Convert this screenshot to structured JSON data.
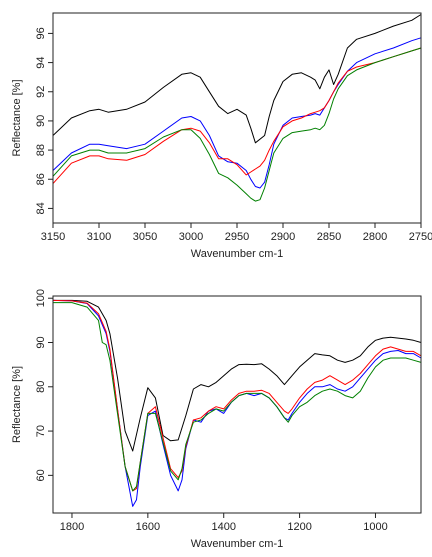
{
  "chart_data": [
    {
      "type": "line",
      "xlabel": "Wavenumber cm-1",
      "ylabel": "Reflectance [%]",
      "xlim": [
        3150,
        2750
      ],
      "ylim": [
        83,
        97.4
      ],
      "xticks": [
        3150,
        3100,
        3050,
        3000,
        2950,
        2900,
        2850,
        2800,
        2750
      ],
      "xtick_labels": [
        "3150",
        "3100",
        "3050",
        "3000",
        "2950",
        "2900",
        "2850",
        "2800",
        "2750"
      ],
      "yticks": [
        84,
        86,
        88,
        90,
        92,
        94,
        96
      ],
      "ytick_labels": [
        "84",
        "86",
        "88",
        "90",
        "92",
        "94",
        "96"
      ],
      "grid": false,
      "legend": "none",
      "series": [
        {
          "color": "#000000",
          "x": [
            3150,
            3130,
            3110,
            3100,
            3090,
            3070,
            3050,
            3030,
            3010,
            3000,
            2990,
            2980,
            2970,
            2960,
            2950,
            2940,
            2935,
            2930,
            2920,
            2915,
            2910,
            2900,
            2890,
            2880,
            2870,
            2865,
            2860,
            2855,
            2850,
            2845,
            2840,
            2830,
            2820,
            2800,
            2780,
            2760,
            2750
          ],
          "y": [
            89.0,
            90.2,
            90.7,
            90.8,
            90.6,
            90.8,
            91.3,
            92.3,
            93.2,
            93.3,
            93.0,
            92.0,
            91.0,
            90.5,
            90.8,
            90.4,
            89.5,
            88.5,
            89.0,
            90.3,
            91.4,
            92.7,
            93.2,
            93.3,
            93.0,
            92.8,
            92.2,
            93.0,
            93.5,
            92.5,
            93.2,
            95.0,
            95.6,
            96.0,
            96.5,
            96.9,
            97.3
          ]
        },
        {
          "color": "#0000ff",
          "x": [
            3150,
            3130,
            3110,
            3100,
            3090,
            3070,
            3050,
            3030,
            3010,
            3000,
            2990,
            2980,
            2970,
            2960,
            2950,
            2940,
            2935,
            2930,
            2925,
            2920,
            2915,
            2910,
            2900,
            2890,
            2880,
            2870,
            2865,
            2860,
            2855,
            2850,
            2845,
            2840,
            2830,
            2820,
            2800,
            2780,
            2760,
            2750
          ],
          "y": [
            86.6,
            87.8,
            88.4,
            88.4,
            88.3,
            88.1,
            88.4,
            89.3,
            90.2,
            90.3,
            90.0,
            89.0,
            87.6,
            87.2,
            87.1,
            86.6,
            86.0,
            85.5,
            85.4,
            85.8,
            87.0,
            88.4,
            89.7,
            90.2,
            90.3,
            90.4,
            90.5,
            90.4,
            90.9,
            91.4,
            92.0,
            92.5,
            93.4,
            94.0,
            94.6,
            95.0,
            95.5,
            95.7
          ]
        },
        {
          "color": "#ff0000",
          "x": [
            3150,
            3130,
            3110,
            3100,
            3090,
            3070,
            3050,
            3030,
            3010,
            3000,
            2990,
            2980,
            2970,
            2960,
            2950,
            2940,
            2935,
            2930,
            2925,
            2920,
            2915,
            2910,
            2900,
            2890,
            2880,
            2870,
            2865,
            2860,
            2855,
            2850,
            2845,
            2840,
            2830,
            2820,
            2800,
            2780,
            2760,
            2750
          ],
          "y": [
            85.7,
            87.1,
            87.6,
            87.6,
            87.4,
            87.3,
            87.7,
            88.6,
            89.4,
            89.5,
            89.3,
            88.5,
            87.4,
            87.4,
            87.0,
            86.3,
            86.5,
            86.7,
            86.9,
            87.3,
            88.0,
            88.6,
            89.6,
            90.0,
            90.2,
            90.5,
            90.6,
            90.7,
            90.9,
            91.4,
            92.0,
            92.6,
            93.4,
            93.7,
            94.0,
            94.4,
            94.8,
            95.0
          ]
        },
        {
          "color": "#008000",
          "x": [
            3150,
            3130,
            3110,
            3100,
            3090,
            3070,
            3050,
            3030,
            3010,
            3000,
            2990,
            2980,
            2970,
            2960,
            2950,
            2940,
            2935,
            2930,
            2925,
            2920,
            2915,
            2910,
            2900,
            2890,
            2880,
            2870,
            2865,
            2860,
            2855,
            2850,
            2845,
            2840,
            2830,
            2820,
            2800,
            2780,
            2760,
            2750
          ],
          "y": [
            86.2,
            87.6,
            88.0,
            88.0,
            87.8,
            87.8,
            88.1,
            88.9,
            89.4,
            89.4,
            88.8,
            87.7,
            86.4,
            86.1,
            85.6,
            85.0,
            84.7,
            84.5,
            84.6,
            85.4,
            86.6,
            87.8,
            88.8,
            89.2,
            89.3,
            89.4,
            89.5,
            89.4,
            89.7,
            90.5,
            91.5,
            92.2,
            93.1,
            93.5,
            94.0,
            94.4,
            94.8,
            95.0
          ]
        }
      ]
    },
    {
      "type": "line",
      "xlabel": "Wavenumber cm-1",
      "ylabel": "Reflectance [%]",
      "xlim": [
        1850,
        880
      ],
      "ylim": [
        51.5,
        100.5
      ],
      "xticks": [
        1800,
        1600,
        1400,
        1200,
        1000
      ],
      "xtick_labels": [
        "1800",
        "1600",
        "1400",
        "1200",
        "1000"
      ],
      "yticks": [
        60,
        70,
        80,
        90,
        100
      ],
      "ytick_labels": [
        "60",
        "70",
        "80",
        "90",
        "100"
      ],
      "grid": false,
      "legend": "none",
      "series": [
        {
          "color": "#000000",
          "x": [
            1850,
            1800,
            1760,
            1730,
            1710,
            1700,
            1680,
            1660,
            1640,
            1620,
            1600,
            1580,
            1560,
            1540,
            1520,
            1500,
            1480,
            1460,
            1440,
            1420,
            1400,
            1380,
            1360,
            1340,
            1320,
            1300,
            1280,
            1260,
            1240,
            1220,
            1200,
            1180,
            1160,
            1140,
            1120,
            1100,
            1080,
            1060,
            1040,
            1020,
            1000,
            980,
            960,
            940,
            920,
            900,
            880
          ],
          "y": [
            99.5,
            99.5,
            99.3,
            98.0,
            95.0,
            92.0,
            82.0,
            70.0,
            65.5,
            73.0,
            79.8,
            77.5,
            69.0,
            67.8,
            68.0,
            73.5,
            79.5,
            80.5,
            80.0,
            81.0,
            82.5,
            84.0,
            85.0,
            85.1,
            85.0,
            85.2,
            84.0,
            82.5,
            80.5,
            82.5,
            84.5,
            86.0,
            87.5,
            87.2,
            87.0,
            86.0,
            85.5,
            86.0,
            87.0,
            89.0,
            90.5,
            91.0,
            91.2,
            91.0,
            90.8,
            90.5,
            90.0
          ]
        },
        {
          "color": "#0000ff",
          "x": [
            1850,
            1800,
            1760,
            1730,
            1710,
            1700,
            1680,
            1660,
            1640,
            1630,
            1620,
            1600,
            1580,
            1560,
            1540,
            1520,
            1510,
            1500,
            1480,
            1460,
            1440,
            1420,
            1400,
            1380,
            1360,
            1340,
            1320,
            1300,
            1280,
            1260,
            1240,
            1230,
            1220,
            1200,
            1180,
            1160,
            1140,
            1120,
            1100,
            1080,
            1060,
            1040,
            1020,
            1000,
            980,
            960,
            940,
            920,
            900,
            880
          ],
          "y": [
            99.5,
            99.4,
            98.8,
            96.0,
            92.0,
            88.0,
            75.0,
            62.0,
            53.0,
            54.5,
            62.0,
            73.5,
            74.5,
            67.0,
            60.0,
            56.5,
            59.0,
            66.0,
            72.5,
            72.0,
            74.5,
            75.0,
            74.0,
            76.5,
            78.0,
            78.5,
            78.0,
            78.5,
            77.5,
            75.5,
            73.0,
            72.5,
            74.0,
            76.5,
            78.5,
            80.0,
            80.0,
            80.5,
            79.5,
            79.0,
            80.0,
            82.0,
            84.0,
            86.0,
            87.5,
            88.0,
            88.2,
            87.5,
            87.5,
            86.5
          ]
        },
        {
          "color": "#ff0000",
          "x": [
            1850,
            1800,
            1760,
            1730,
            1710,
            1700,
            1680,
            1660,
            1640,
            1630,
            1620,
            1600,
            1580,
            1560,
            1540,
            1520,
            1510,
            1500,
            1480,
            1460,
            1440,
            1420,
            1400,
            1380,
            1360,
            1340,
            1320,
            1300,
            1280,
            1260,
            1240,
            1230,
            1220,
            1200,
            1180,
            1160,
            1140,
            1120,
            1100,
            1080,
            1060,
            1040,
            1020,
            1000,
            980,
            960,
            940,
            920,
            900,
            880
          ],
          "y": [
            99.5,
            99.4,
            98.9,
            96.5,
            92.5,
            88.5,
            75.0,
            62.0,
            56.5,
            57.0,
            63.0,
            74.0,
            75.5,
            68.5,
            61.5,
            59.5,
            61.0,
            66.5,
            72.5,
            73.0,
            74.5,
            75.5,
            75.0,
            77.0,
            78.5,
            79.0,
            79.0,
            79.2,
            78.5,
            76.5,
            74.5,
            74.0,
            75.0,
            77.5,
            79.5,
            81.0,
            81.5,
            82.5,
            81.5,
            80.5,
            81.5,
            83.0,
            85.0,
            87.0,
            88.5,
            89.0,
            88.5,
            88.0,
            88.0,
            87.0
          ]
        },
        {
          "color": "#008000",
          "x": [
            1850,
            1800,
            1760,
            1730,
            1720,
            1710,
            1700,
            1680,
            1660,
            1640,
            1630,
            1620,
            1600,
            1580,
            1560,
            1540,
            1520,
            1510,
            1500,
            1480,
            1460,
            1440,
            1420,
            1400,
            1380,
            1360,
            1340,
            1320,
            1300,
            1280,
            1260,
            1240,
            1230,
            1220,
            1200,
            1180,
            1160,
            1140,
            1120,
            1100,
            1080,
            1060,
            1040,
            1020,
            1000,
            980,
            960,
            940,
            920,
            900,
            880
          ],
          "y": [
            99.0,
            99.0,
            98.0,
            95.0,
            90.0,
            89.5,
            86.0,
            74.0,
            62.0,
            56.5,
            57.5,
            63.0,
            74.0,
            74.0,
            67.5,
            61.0,
            59.0,
            61.5,
            67.0,
            72.0,
            72.5,
            74.0,
            75.0,
            74.5,
            76.5,
            78.0,
            78.5,
            78.5,
            78.5,
            77.5,
            75.5,
            73.0,
            72.0,
            73.5,
            75.5,
            76.5,
            78.0,
            79.0,
            79.5,
            79.0,
            78.0,
            77.5,
            79.0,
            82.0,
            84.5,
            86.0,
            86.5,
            86.5,
            86.5,
            86.0,
            85.5
          ]
        }
      ]
    }
  ]
}
